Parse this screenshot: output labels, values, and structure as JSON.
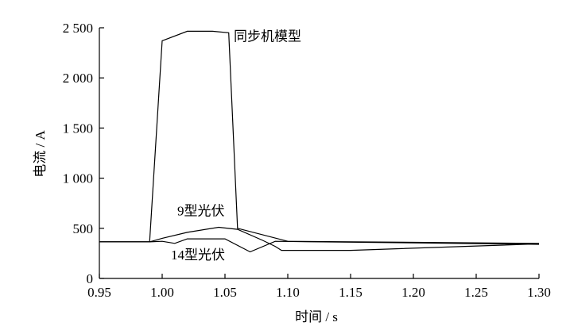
{
  "chart_data": {
    "type": "line",
    "title": "",
    "xlabel": "时间 / s",
    "ylabel": "电流 / A",
    "xlim": [
      0.95,
      1.3
    ],
    "ylim": [
      0,
      2500
    ],
    "x_ticks": [
      {
        "value": 0.95,
        "label": "0.95"
      },
      {
        "value": 1.0,
        "label": "1.00"
      },
      {
        "value": 1.05,
        "label": "1.05"
      },
      {
        "value": 1.1,
        "label": "1.10"
      },
      {
        "value": 1.15,
        "label": "1.15"
      },
      {
        "value": 1.2,
        "label": "1.20"
      },
      {
        "value": 1.25,
        "label": "1.25"
      },
      {
        "value": 1.3,
        "label": "1.30"
      }
    ],
    "y_ticks": [
      {
        "value": 0,
        "label": "0"
      },
      {
        "value": 500,
        "label": "500"
      },
      {
        "value": 1000,
        "label": "1 000"
      },
      {
        "value": 1500,
        "label": "1 500"
      },
      {
        "value": 2000,
        "label": "2 000"
      },
      {
        "value": 2500,
        "label": "2 500"
      }
    ],
    "grid": false,
    "legend": "none",
    "series": [
      {
        "name": "同步机模型",
        "points": [
          [
            0.95,
            365
          ],
          [
            0.99,
            365
          ],
          [
            1.0,
            2370
          ],
          [
            1.02,
            2465
          ],
          [
            1.04,
            2465
          ],
          [
            1.053,
            2450
          ],
          [
            1.06,
            500
          ],
          [
            1.1,
            370
          ],
          [
            1.3,
            350
          ]
        ]
      },
      {
        "name": "9型光伏",
        "points": [
          [
            0.95,
            365
          ],
          [
            0.99,
            365
          ],
          [
            1.0,
            400
          ],
          [
            1.02,
            460
          ],
          [
            1.045,
            510
          ],
          [
            1.06,
            490
          ],
          [
            1.08,
            380
          ],
          [
            1.09,
            320
          ],
          [
            1.095,
            280
          ],
          [
            1.15,
            280
          ],
          [
            1.3,
            345
          ]
        ]
      },
      {
        "name": "14型光伏",
        "points": [
          [
            0.95,
            365
          ],
          [
            0.99,
            365
          ],
          [
            1.0,
            370
          ],
          [
            1.01,
            350
          ],
          [
            1.02,
            395
          ],
          [
            1.05,
            395
          ],
          [
            1.07,
            265
          ],
          [
            1.09,
            370
          ],
          [
            1.3,
            340
          ]
        ]
      }
    ],
    "annotations": [
      {
        "text": "同步机模型",
        "x": 1.057,
        "y": 2370
      },
      {
        "text": "9型光伏",
        "x": 1.012,
        "y": 630
      },
      {
        "text": "14型光伏",
        "x": 1.007,
        "y": 190
      }
    ]
  }
}
